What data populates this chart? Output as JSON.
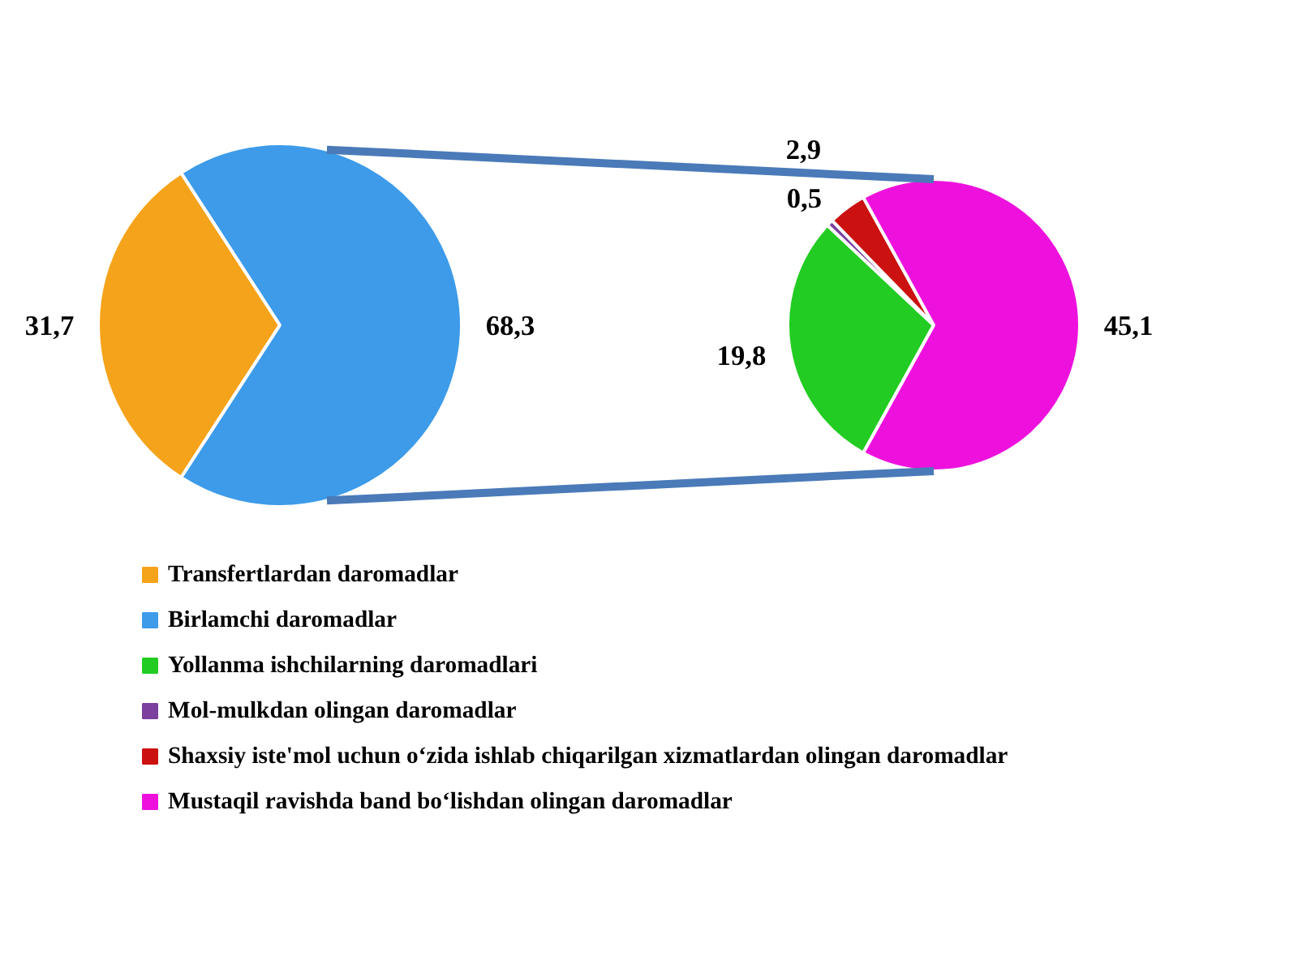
{
  "chart_data": [
    {
      "type": "pie",
      "categories": [
        "Transfertlardan daromadlar",
        "Birlamchi daromadlar"
      ],
      "values": [
        31.7,
        68.3
      ],
      "colors": [
        "#f5a31a",
        "#3d9be9"
      ],
      "value_labels": [
        "31,7",
        "68,3"
      ],
      "legend": "bottom"
    },
    {
      "type": "pie",
      "categories": [
        "Yollanma ishchilarning daromadlari",
        "Mol-mulkdan olingan daromadlar",
        "Shaxsiy iste'mol uchun o‘zida ishlab chiqarilgan xizmatlardan olingan daromadlar",
        "Mustaqil ravishda band bo‘lishdan olingan daromadlar"
      ],
      "values": [
        19.8,
        0.5,
        2.9,
        45.1
      ],
      "colors": [
        "#22cc22",
        "#7b3f9e",
        "#cc1111",
        "#ee11dd"
      ],
      "value_labels": [
        "19,8",
        "0,5",
        "2,9",
        "45,1"
      ],
      "legend": "bottom"
    }
  ]
}
